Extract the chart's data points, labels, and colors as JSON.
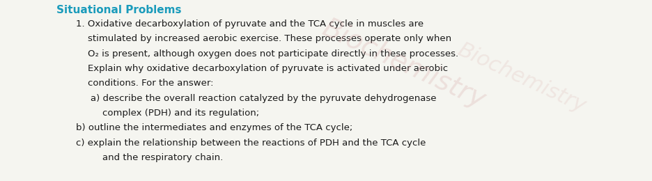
{
  "title": "Situational Problems",
  "title_color": "#1a9bbb",
  "background_color": "#f5f5f0",
  "text_color": "#1a1a1a",
  "number": "1.",
  "paragraph": "Oxidative decarboxylation of pyruvate and the TCA cycle in muscles are stimulated by increased aerobic exercise. These processes operate only when O₂ is present, although oxygen does not participate directly in these processes. Explain why oxidative decarboxylation of pyruvate is activated under aerobic conditions. For the answer:",
  "sub_a": "a) describe the overall reaction catalyzed by the pyruvate dehydrogenase\n    complex (PDH) and its regulation;",
  "sub_b": "b) outline the intermediates and enzymes of the TCA cycle;",
  "sub_c": "c) explain the relationship between the reactions of PDH and the TCA cycle\n    and the respiratory chain.",
  "font_size_title": 11,
  "font_size_body": 9.5,
  "watermark_text": "Biochemistry",
  "watermark_color": "#d4a0a0",
  "watermark_alpha": 0.25
}
